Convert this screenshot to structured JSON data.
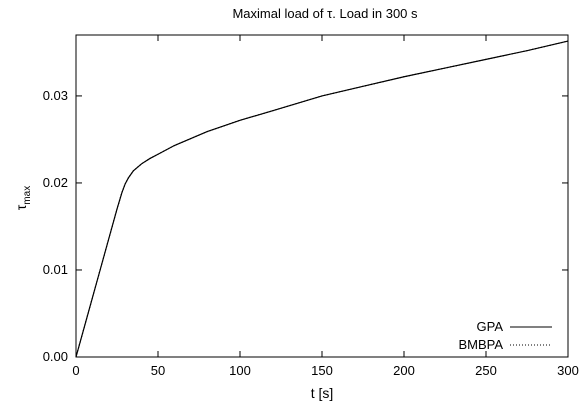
{
  "chart_data": {
    "type": "line",
    "title": "Maximal load of τ. Load in 300 s",
    "xlabel": "t [s]",
    "ylabel": {
      "base": "τ",
      "sub": "max"
    },
    "xlim": [
      0,
      300
    ],
    "ylim": [
      0,
      0.037
    ],
    "xticks": [
      0,
      50,
      100,
      150,
      200,
      250,
      300
    ],
    "xtick_labels": [
      "0",
      "50",
      "100",
      "150",
      "200",
      "250",
      "300"
    ],
    "yticks": [
      0.0,
      0.01,
      0.02,
      0.03
    ],
    "ytick_labels": [
      "0.00",
      "0.01",
      "0.02",
      "0.03"
    ],
    "grid": false,
    "legend_position": "bottom-right",
    "series": [
      {
        "name": "GPA",
        "style": "solid",
        "color": "#000000",
        "x": [
          0,
          5,
          10,
          15,
          20,
          25,
          28,
          30,
          32,
          35,
          40,
          45,
          50,
          60,
          70,
          80,
          100,
          120,
          150,
          175,
          200,
          225,
          250,
          275,
          300
        ],
        "y": [
          0.0,
          0.0034,
          0.0068,
          0.0102,
          0.0136,
          0.017,
          0.0189,
          0.0199,
          0.0206,
          0.0214,
          0.0222,
          0.0228,
          0.0233,
          0.0243,
          0.0251,
          0.0259,
          0.0272,
          0.0283,
          0.03,
          0.0311,
          0.0322,
          0.0332,
          0.0342,
          0.0352,
          0.0363
        ]
      },
      {
        "name": "BMBPA",
        "style": "dotted",
        "color": "#000000",
        "x": [
          0,
          5,
          10,
          15,
          20,
          25,
          28,
          30,
          32,
          35,
          40,
          45,
          50,
          60,
          70,
          80,
          100,
          120,
          150,
          175,
          200,
          225,
          250,
          275,
          300
        ],
        "y": [
          0.0,
          0.0034,
          0.0068,
          0.0102,
          0.0136,
          0.017,
          0.0189,
          0.0199,
          0.0206,
          0.0214,
          0.0222,
          0.0228,
          0.0233,
          0.0243,
          0.0251,
          0.0259,
          0.0272,
          0.0283,
          0.03,
          0.0311,
          0.0322,
          0.0332,
          0.0342,
          0.0352,
          0.0363
        ]
      }
    ]
  }
}
